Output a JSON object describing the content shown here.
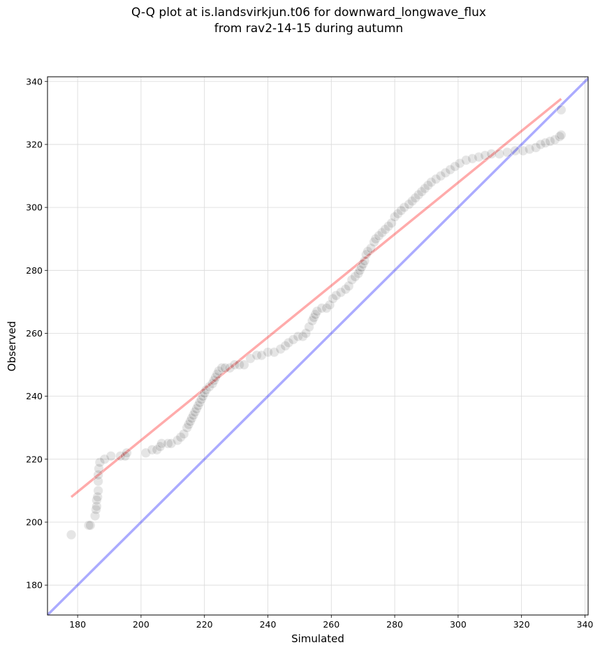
{
  "chart_data": {
    "type": "scatter",
    "title": "Q-Q plot at is.landsvirkjun.t06 for downward_longwave_flux",
    "subtitle": "from rav2-14-15 during autumn",
    "xlabel": "Simulated",
    "ylabel": "Observed",
    "xlim": [
      170.5,
      341
    ],
    "ylim": [
      170.5,
      341.5
    ],
    "xticks": [
      180,
      200,
      220,
      240,
      260,
      280,
      300,
      320,
      340
    ],
    "yticks": [
      180,
      200,
      220,
      240,
      260,
      280,
      300,
      320,
      340
    ],
    "grid": true,
    "reference_line": {
      "name": "1:1 line",
      "color": "#0000ff",
      "x": [
        170.5,
        341
      ],
      "y": [
        170.5,
        341
      ]
    },
    "fit_line": {
      "name": "regression fit",
      "color": "#ff0000",
      "x": [
        178,
        332.5
      ],
      "y": [
        208,
        334.5
      ]
    },
    "series": [
      {
        "name": "quantiles",
        "color": "#000000",
        "points": [
          [
            178,
            196
          ],
          [
            183.5,
            199
          ],
          [
            184,
            199
          ],
          [
            185.5,
            202
          ],
          [
            185.8,
            204
          ],
          [
            186,
            205
          ],
          [
            186,
            207
          ],
          [
            186.3,
            208
          ],
          [
            186.5,
            210
          ],
          [
            186.5,
            213
          ],
          [
            186.5,
            215
          ],
          [
            186.7,
            217
          ],
          [
            187,
            219
          ],
          [
            188.5,
            220
          ],
          [
            190.5,
            221
          ],
          [
            193.5,
            221
          ],
          [
            195,
            221
          ],
          [
            195.5,
            222
          ],
          [
            201.5,
            222
          ],
          [
            203.5,
            223
          ],
          [
            205,
            223
          ],
          [
            206,
            224
          ],
          [
            206.5,
            225
          ],
          [
            208.5,
            225
          ],
          [
            209.5,
            225
          ],
          [
            211.5,
            226
          ],
          [
            212.5,
            227
          ],
          [
            213.5,
            228
          ],
          [
            214.5,
            230
          ],
          [
            215,
            231
          ],
          [
            215.5,
            232
          ],
          [
            216,
            233
          ],
          [
            216.5,
            234
          ],
          [
            217,
            235
          ],
          [
            217.5,
            236
          ],
          [
            218,
            237
          ],
          [
            218.5,
            238
          ],
          [
            219,
            239
          ],
          [
            219.5,
            240
          ],
          [
            220,
            241
          ],
          [
            220.5,
            242
          ],
          [
            221.5,
            243
          ],
          [
            222.5,
            244
          ],
          [
            223,
            245
          ],
          [
            223.5,
            246
          ],
          [
            224,
            247
          ],
          [
            224.5,
            248
          ],
          [
            225.5,
            249
          ],
          [
            226.5,
            249
          ],
          [
            228,
            249
          ],
          [
            229.5,
            250
          ],
          [
            231,
            250
          ],
          [
            232.5,
            250
          ],
          [
            234.5,
            252
          ],
          [
            236.5,
            253
          ],
          [
            238,
            253
          ],
          [
            240,
            254
          ],
          [
            242,
            254
          ],
          [
            244,
            255
          ],
          [
            245.5,
            256
          ],
          [
            246.5,
            257
          ],
          [
            248,
            258
          ],
          [
            249.5,
            259
          ],
          [
            251,
            259
          ],
          [
            252,
            260
          ],
          [
            253,
            262
          ],
          [
            254,
            264
          ],
          [
            254.5,
            265
          ],
          [
            255,
            266
          ],
          [
            255.5,
            267
          ],
          [
            257,
            268
          ],
          [
            258.5,
            268
          ],
          [
            259.5,
            269
          ],
          [
            260.5,
            271
          ],
          [
            261.5,
            272
          ],
          [
            263,
            273
          ],
          [
            264.5,
            274
          ],
          [
            265.5,
            275
          ],
          [
            266.5,
            277
          ],
          [
            267.5,
            278
          ],
          [
            268.5,
            279
          ],
          [
            269,
            280
          ],
          [
            269.5,
            281
          ],
          [
            270,
            282
          ],
          [
            270.5,
            283
          ],
          [
            271,
            285
          ],
          [
            271.5,
            286
          ],
          [
            272.5,
            287
          ],
          [
            273.5,
            289
          ],
          [
            274,
            290
          ],
          [
            275,
            291
          ],
          [
            276,
            292
          ],
          [
            277,
            293
          ],
          [
            278,
            294
          ],
          [
            279,
            295
          ],
          [
            280,
            297
          ],
          [
            281,
            298
          ],
          [
            282,
            299
          ],
          [
            283,
            300
          ],
          [
            284.5,
            301
          ],
          [
            285.5,
            302
          ],
          [
            286.5,
            303
          ],
          [
            287.5,
            304
          ],
          [
            288.5,
            305
          ],
          [
            289.5,
            306
          ],
          [
            290.5,
            307
          ],
          [
            291.5,
            308
          ],
          [
            293,
            309
          ],
          [
            294.5,
            310
          ],
          [
            296,
            311
          ],
          [
            297.5,
            312
          ],
          [
            299,
            313
          ],
          [
            300.5,
            314
          ],
          [
            302.5,
            315
          ],
          [
            304.5,
            315.5
          ],
          [
            306.5,
            316
          ],
          [
            308.5,
            316.5
          ],
          [
            310.5,
            317
          ],
          [
            313,
            317
          ],
          [
            315.5,
            317.5
          ],
          [
            318,
            318
          ],
          [
            320.5,
            318
          ],
          [
            322.5,
            318.5
          ],
          [
            324.5,
            319
          ],
          [
            326,
            320
          ],
          [
            327.5,
            320.5
          ],
          [
            329,
            321
          ],
          [
            330.5,
            321.5
          ],
          [
            332,
            322.5
          ],
          [
            332.5,
            323
          ],
          [
            332.5,
            331
          ]
        ]
      }
    ]
  }
}
